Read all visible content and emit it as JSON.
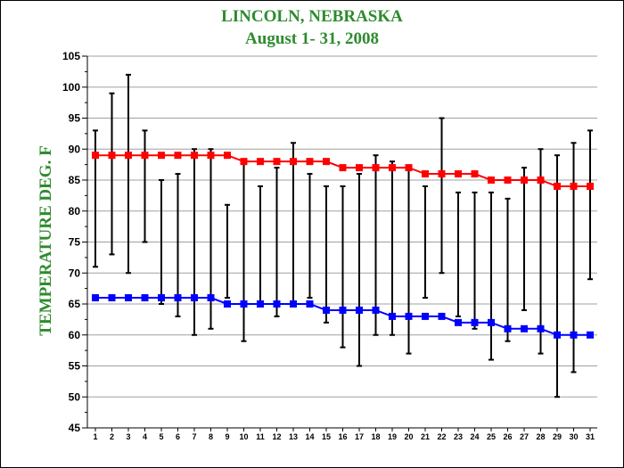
{
  "chart_data": {
    "type": "line",
    "title": "LINCOLN, NEBRASKA",
    "subtitle": "August 1- 31, 2008",
    "ylabel": "TEMPERATURE DEG. F",
    "xlabel": "",
    "ylim": [
      45,
      105
    ],
    "yticks": [
      45,
      50,
      55,
      60,
      65,
      70,
      75,
      80,
      85,
      90,
      95,
      100,
      105
    ],
    "grid": true,
    "x": [
      1,
      2,
      3,
      4,
      5,
      6,
      7,
      8,
      9,
      10,
      11,
      12,
      13,
      14,
      15,
      16,
      17,
      18,
      19,
      20,
      21,
      22,
      23,
      24,
      25,
      26,
      27,
      28,
      29,
      30,
      31
    ],
    "series": [
      {
        "name": "",
        "color": "#ff0000",
        "values": [
          89,
          89,
          89,
          89,
          89,
          89,
          89,
          89,
          89,
          88,
          88,
          88,
          88,
          88,
          88,
          87,
          87,
          87,
          87,
          87,
          86,
          86,
          86,
          86,
          85,
          85,
          85,
          85,
          84,
          84,
          84
        ]
      },
      {
        "name": "",
        "color": "#0000ff",
        "values": [
          66,
          66,
          66,
          66,
          66,
          66,
          66,
          66,
          65,
          65,
          65,
          65,
          65,
          65,
          64,
          64,
          64,
          64,
          63,
          63,
          63,
          63,
          62,
          62,
          62,
          61,
          61,
          61,
          60,
          60,
          60
        ]
      }
    ],
    "ranges": {
      "color": "#000000",
      "high": [
        93,
        99,
        102,
        93,
        85,
        86,
        90,
        90,
        81,
        88,
        84,
        87,
        91,
        86,
        84,
        84,
        86,
        89,
        88,
        87,
        84,
        95,
        83,
        83,
        83,
        82,
        87,
        90,
        89,
        91,
        93
      ],
      "low": [
        71,
        73,
        70,
        75,
        65,
        63,
        60,
        61,
        66,
        59,
        65,
        63,
        65,
        66,
        62,
        58,
        55,
        60,
        60,
        57,
        66,
        70,
        63,
        61,
        56,
        59,
        64,
        57,
        50,
        54,
        69
      ]
    }
  }
}
